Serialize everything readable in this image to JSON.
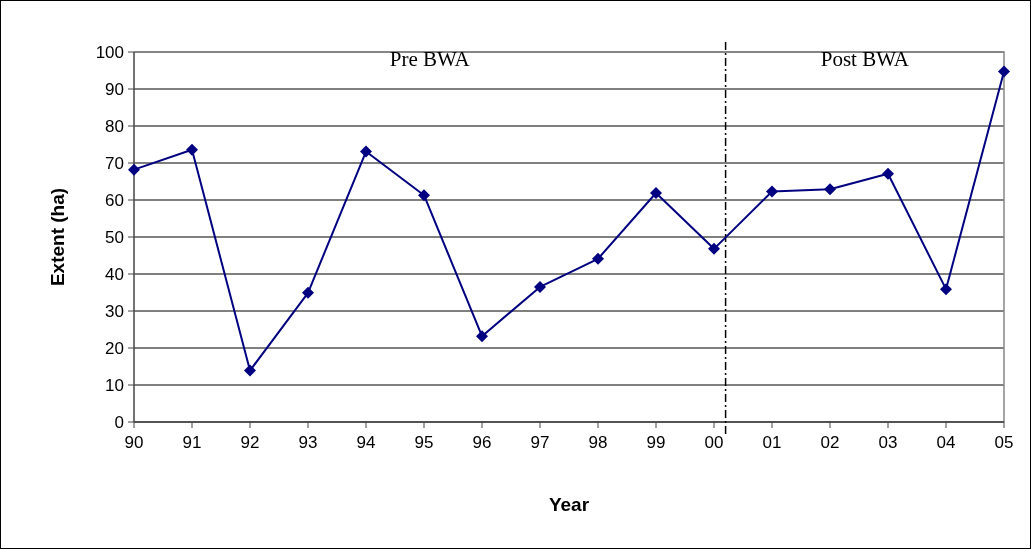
{
  "chart_data": {
    "type": "line",
    "xlabel": "Year",
    "ylabel": "Extent (ha)",
    "x": [
      1990,
      1991,
      1992,
      1993,
      1994,
      1995,
      1996,
      1997,
      1998,
      1999,
      2000,
      2001,
      2002,
      2003,
      2004,
      2005
    ],
    "series": [
      {
        "color": "#000080",
        "values": [
          68.2,
          73.6,
          13.9,
          34.9,
          73.1,
          61.3,
          23.2,
          36.5,
          44.1,
          61.9,
          46.8,
          62.3,
          62.9,
          67.1,
          35.9,
          94.7
        ]
      }
    ],
    "xlim": [
      1990,
      2005
    ],
    "xticks": [
      {
        "value": 1990,
        "label": "90"
      },
      {
        "value": 1991,
        "label": "91"
      },
      {
        "value": 1992,
        "label": "92"
      },
      {
        "value": 1993,
        "label": "93"
      },
      {
        "value": 1994,
        "label": "94"
      },
      {
        "value": 1995,
        "label": "95"
      },
      {
        "value": 1996,
        "label": "96"
      },
      {
        "value": 1997,
        "label": "97"
      },
      {
        "value": 1998,
        "label": "98"
      },
      {
        "value": 1999,
        "label": "99"
      },
      {
        "value": 2000,
        "label": "00"
      },
      {
        "value": 2001,
        "label": "01"
      },
      {
        "value": 2002,
        "label": "02"
      },
      {
        "value": 2003,
        "label": "03"
      },
      {
        "value": 2004,
        "label": "04"
      },
      {
        "value": 2005,
        "label": "05"
      }
    ],
    "ylim": [
      0,
      100
    ],
    "yticks": [
      0,
      10,
      20,
      30,
      40,
      50,
      60,
      70,
      80,
      90,
      100
    ],
    "grid": "y",
    "marker": "diamond",
    "line_style": "solid",
    "ref_lines": [
      {
        "axis": "x",
        "value": 2000.2,
        "color": "#000000",
        "line_style": "dashed"
      }
    ],
    "annotations": [
      "Pre BWA",
      "Post BWA"
    ]
  }
}
